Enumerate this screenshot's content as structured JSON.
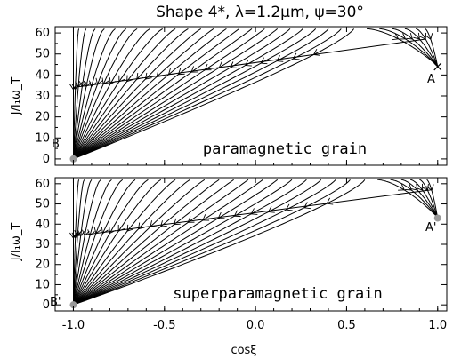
{
  "title": "Shape 4*, λ=1.2μm, ψ=30°",
  "xlabel": "cosξ",
  "ylabel": "J/I₁ω_T",
  "chart_data": [
    {
      "type": "line",
      "panel": "top",
      "label": "paramagnetic grain",
      "xlim": [
        -1.1,
        1.05
      ],
      "ylim": [
        -3,
        63
      ],
      "xticks": [
        -1.0,
        -0.5,
        0.0,
        0.5,
        1.0
      ],
      "xtick_labels": [
        "-1.0",
        "-0.5",
        "0.0",
        "0.5",
        "1.0"
      ],
      "yticks": [
        0,
        10,
        20,
        30,
        40,
        50,
        60
      ],
      "ytick_labels": [
        "0",
        "10",
        "20",
        "30",
        "40",
        "50",
        "60"
      ],
      "attractor_A": {
        "label": "A",
        "x": 1.0,
        "y": 44
      },
      "attractor_B": {
        "label": "B",
        "x": -1.0,
        "y": 0
      },
      "separatrix": {
        "x0": -1.0,
        "y0": 34,
        "x1": 0.93,
        "y1": 57
      },
      "trajectory_starts_x": [
        -1.0,
        -0.97,
        -0.93,
        -0.88,
        -0.83,
        -0.77,
        -0.71,
        -0.65,
        -0.58,
        -0.51,
        -0.44,
        -0.37,
        -0.3,
        -0.23,
        -0.16,
        -0.09,
        -0.02,
        0.05,
        0.12,
        0.19,
        0.26,
        0.33,
        0.4,
        0.47,
        0.54,
        0.61,
        0.68,
        0.75,
        0.82,
        0.88,
        0.93
      ],
      "y_top": 62
    },
    {
      "type": "line",
      "panel": "bottom",
      "label": "superparamagnetic grain",
      "xlim": [
        -1.1,
        1.05
      ],
      "ylim": [
        -3,
        63
      ],
      "xticks": [
        -1.0,
        -0.5,
        0.0,
        0.5,
        1.0
      ],
      "xtick_labels": [
        "-1.0",
        "-0.5",
        "0.0",
        "0.5",
        "1.0"
      ],
      "yticks": [
        0,
        10,
        20,
        30,
        40,
        50,
        60
      ],
      "ytick_labels": [
        "0",
        "10",
        "20",
        "30",
        "40",
        "50",
        "60"
      ],
      "attractor_A": {
        "label": "A'",
        "x": 1.0,
        "y": 43
      },
      "attractor_B": {
        "label": "B'",
        "x": -1.0,
        "y": 0
      },
      "separatrix": {
        "x0": -1.0,
        "y0": 34,
        "x1": 0.97,
        "y1": 57
      },
      "trajectory_starts_x": [
        -1.0,
        -0.97,
        -0.94,
        -0.9,
        -0.85,
        -0.79,
        -0.73,
        -0.66,
        -0.59,
        -0.52,
        -0.44,
        -0.36,
        -0.28,
        -0.2,
        -0.12,
        -0.04,
        0.04,
        0.12,
        0.2,
        0.28,
        0.36,
        0.44,
        0.52,
        0.6,
        0.67,
        0.74,
        0.8,
        0.85,
        0.9,
        0.94
      ],
      "y_top": 62
    }
  ]
}
